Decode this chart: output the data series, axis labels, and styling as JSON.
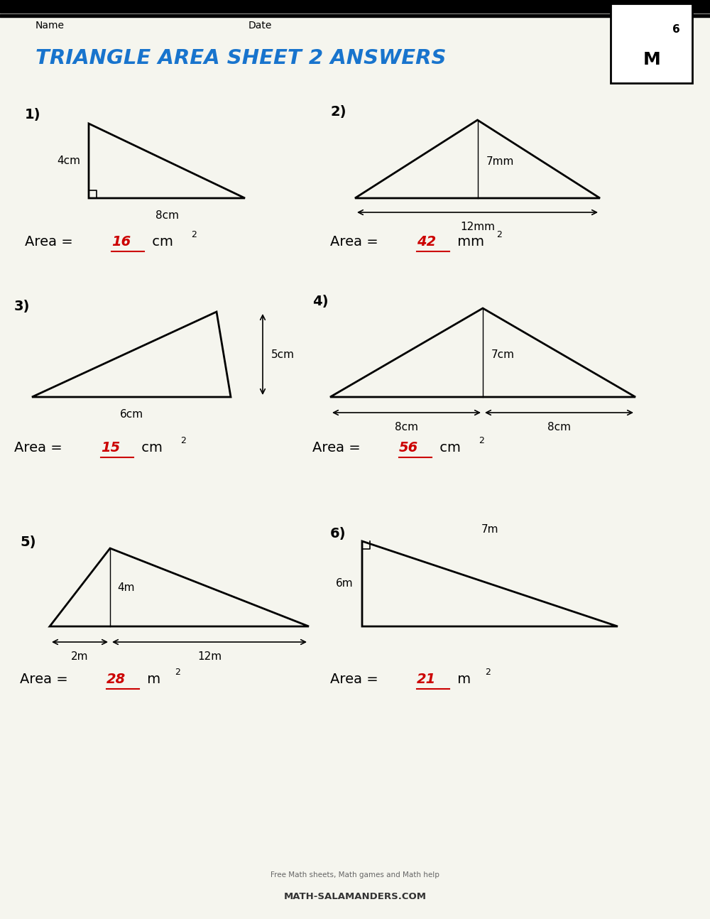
{
  "title": "TRIANGLE AREA SHEET 2 ANSWERS",
  "title_color": "#1874CD",
  "bg_color": "#F5F5EE",
  "red": "#CC0000",
  "black": "#1a1a1a",
  "lw": 2.0,
  "problems": [
    {
      "num": "1)",
      "area_num": "16",
      "area_unit": "cm"
    },
    {
      "num": "2)",
      "area_num": "42",
      "area_unit": "mm"
    },
    {
      "num": "3)",
      "area_num": "15",
      "area_unit": "cm"
    },
    {
      "num": "4)",
      "area_num": "56",
      "area_unit": "cm"
    },
    {
      "num": "5)",
      "area_num": "28",
      "area_unit": "m"
    },
    {
      "num": "6)",
      "area_num": "21",
      "area_unit": "m"
    }
  ]
}
